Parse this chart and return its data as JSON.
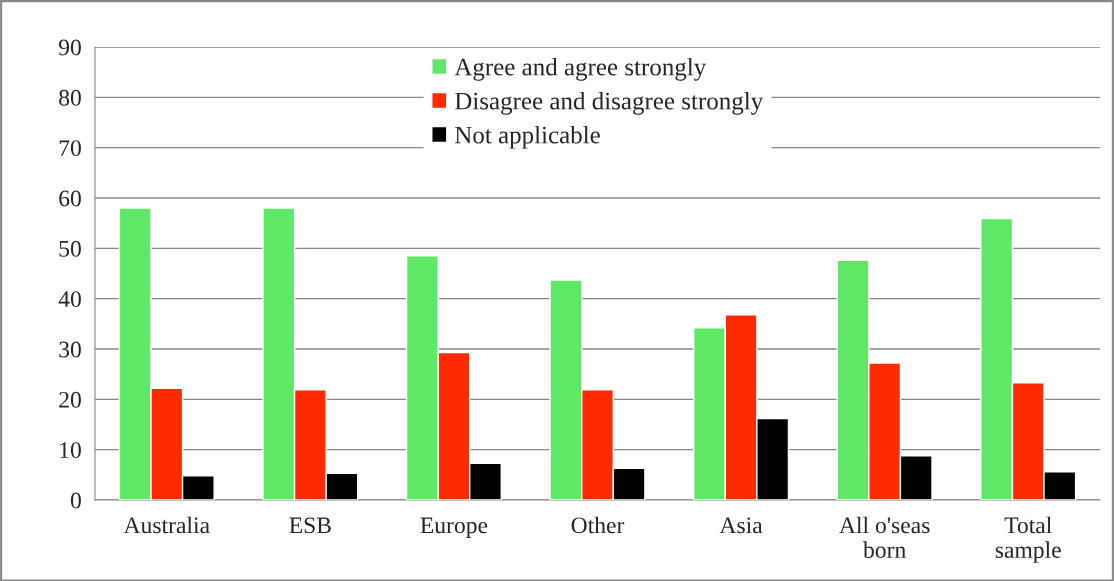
{
  "chart_data": {
    "type": "bar",
    "categories": [
      "Australia",
      "ESB",
      "Europe",
      "Other",
      "Asia",
      "All o'seas\nborn",
      "Total\nsample"
    ],
    "series": [
      {
        "name": "Agree and agree strongly",
        "color": "#5ee865",
        "values": [
          58,
          58,
          48.5,
          43.7,
          34.2,
          47.6,
          55.9
        ]
      },
      {
        "name": "Disagree and disagree strongly",
        "color": "#ff2a00",
        "values": [
          22.2,
          21.9,
          29.3,
          21.9,
          36.8,
          27.2,
          23.3
        ]
      },
      {
        "name": "Not applicable",
        "color": "#000000",
        "values": [
          4.8,
          5.3,
          7.3,
          6.3,
          16.2,
          8.8,
          5.6
        ]
      }
    ],
    "ylim": [
      0,
      90
    ],
    "yticks": [
      0,
      10,
      20,
      30,
      40,
      50,
      60,
      70,
      80,
      90
    ],
    "grid": "y",
    "legend": "top"
  }
}
